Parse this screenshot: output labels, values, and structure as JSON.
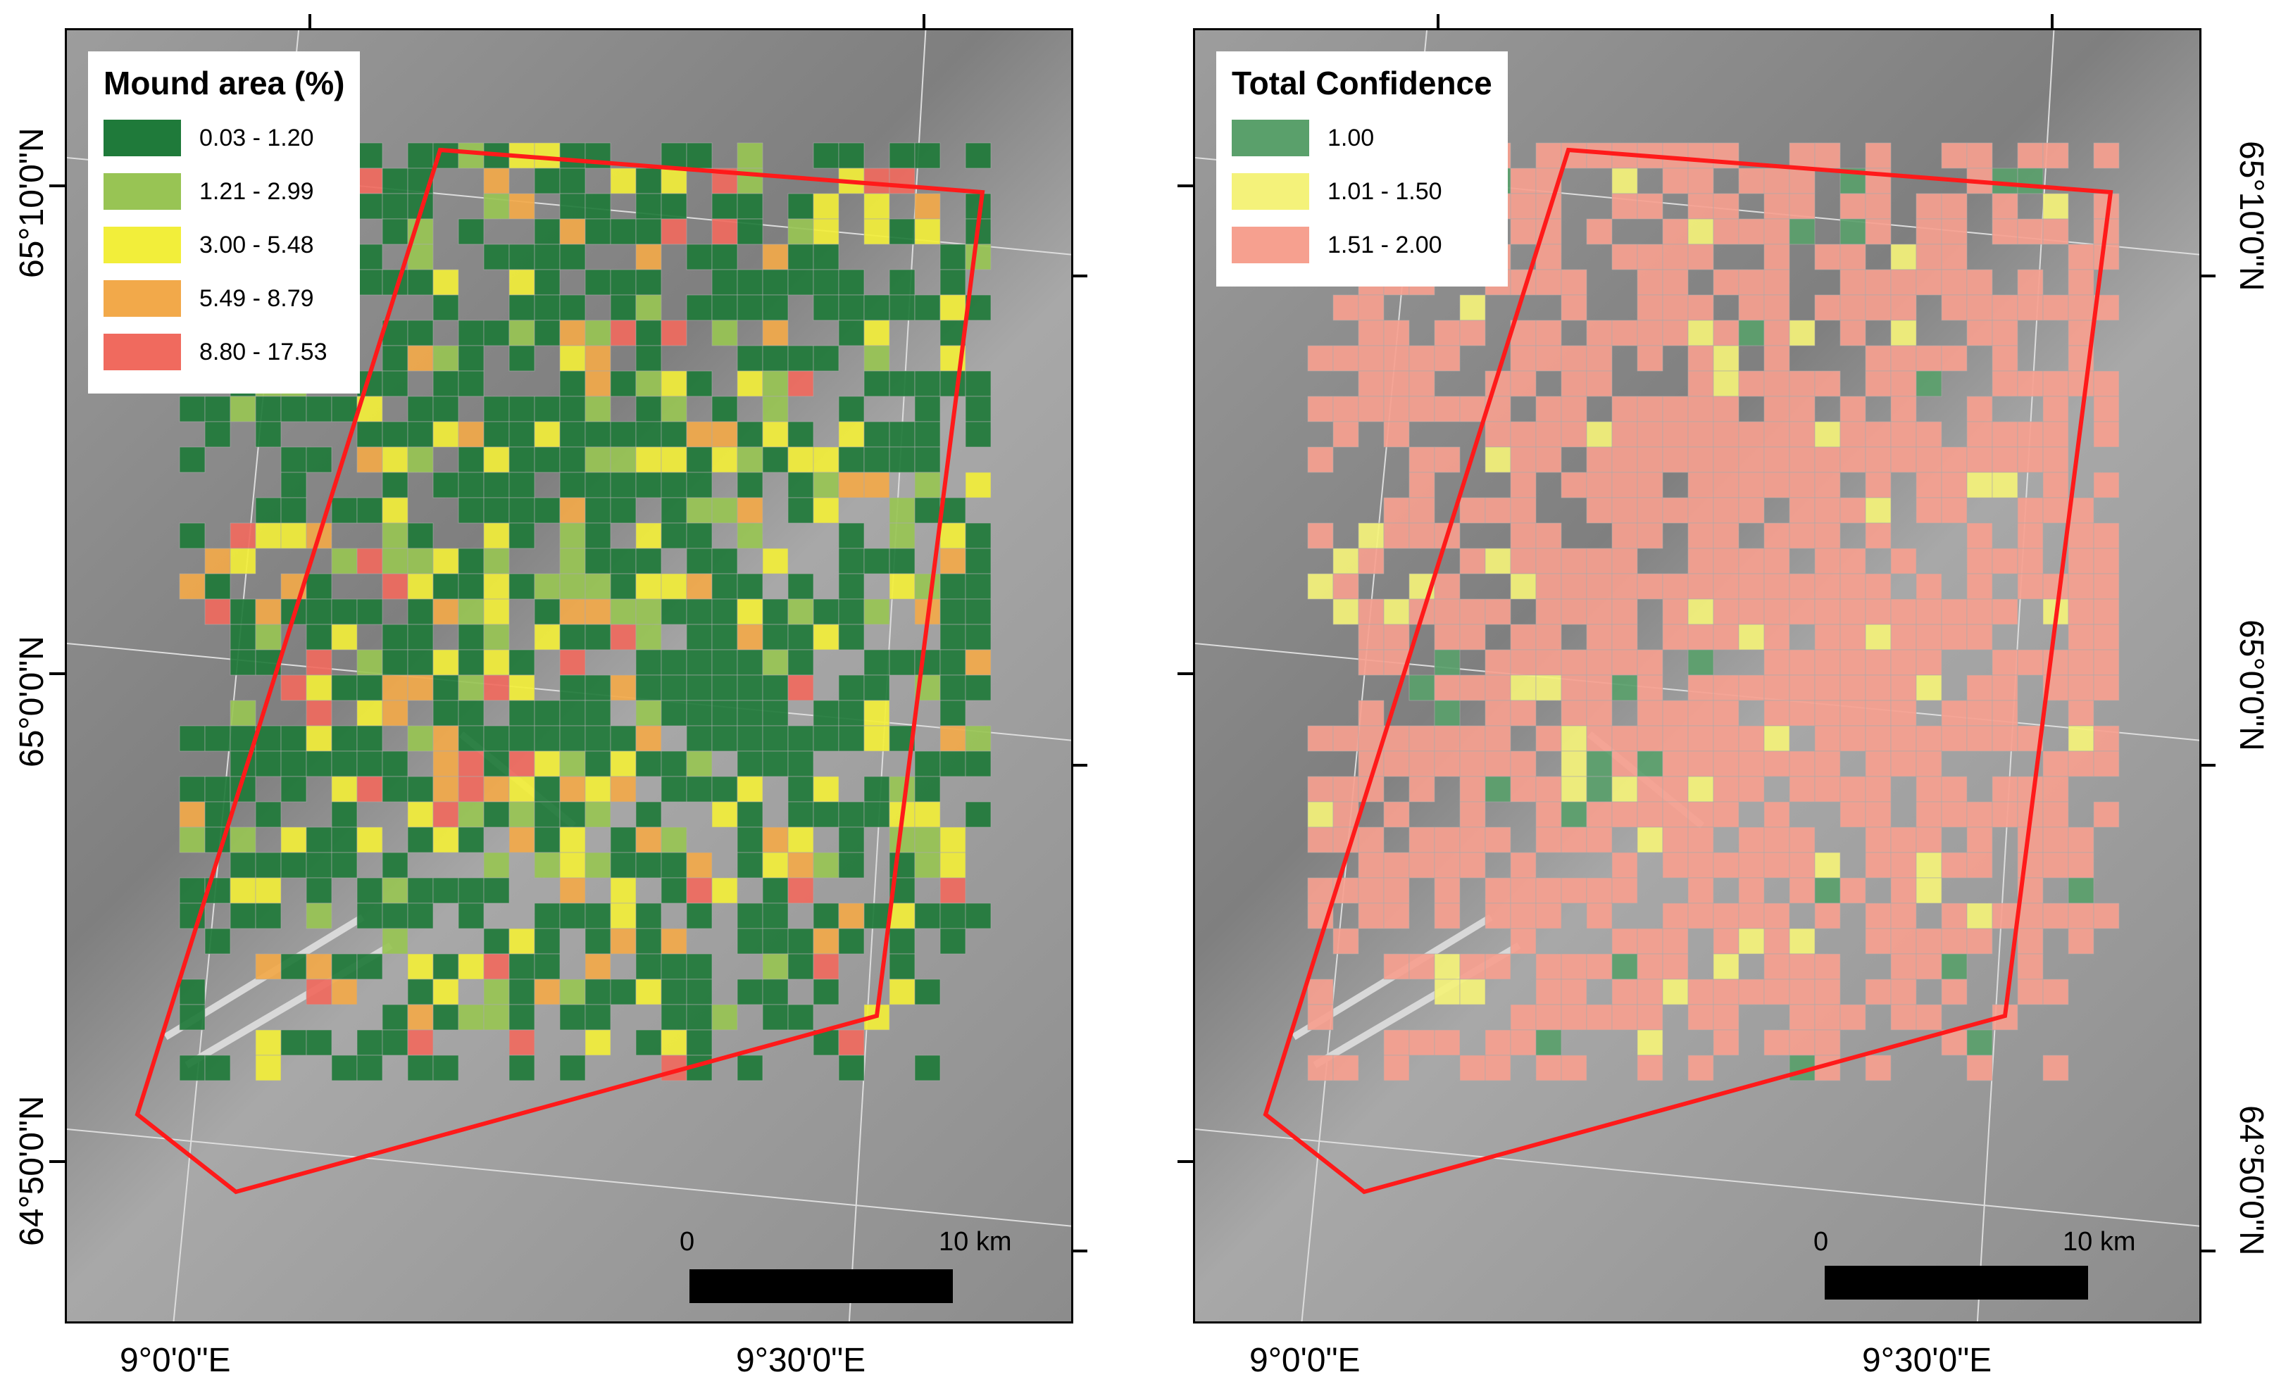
{
  "panels": [
    {
      "legend": {
        "title": "Mound area (%)",
        "items": [
          {
            "label": "0.03 - 1.20",
            "color": "#1f7a3a"
          },
          {
            "label": "1.21 - 2.99",
            "color": "#98c454"
          },
          {
            "label": "3.00 - 5.48",
            "color": "#f2ee3a"
          },
          {
            "label": "5.49 - 8.79",
            "color": "#f2a94a"
          },
          {
            "label": "8.80 - 17.53",
            "color": "#f06a5e"
          }
        ]
      },
      "lat_labels": [
        "65°10'0\"N",
        "65°0'0\"N",
        "64°50'0\"N"
      ],
      "lon_labels": [
        "9°0'0\"E",
        "9°30'0\"E"
      ],
      "scale": {
        "start": "0",
        "end": "10 km"
      }
    },
    {
      "legend": {
        "title": "Total Confidence",
        "items": [
          {
            "label": "1.00",
            "color": "#5aa06b"
          },
          {
            "label": "1.01 - 1.50",
            "color": "#f4f27a"
          },
          {
            "label": "1.51 - 2.00",
            "color": "#f6a08f"
          }
        ]
      },
      "lat_labels": [
        "65°10'0\"N",
        "65°0'0\"N",
        "64°50'0\"N"
      ],
      "lon_labels": [
        "9°0'0\"E",
        "9°30'0\"E"
      ],
      "scale": {
        "start": "0",
        "end": "10 km"
      }
    }
  ]
}
